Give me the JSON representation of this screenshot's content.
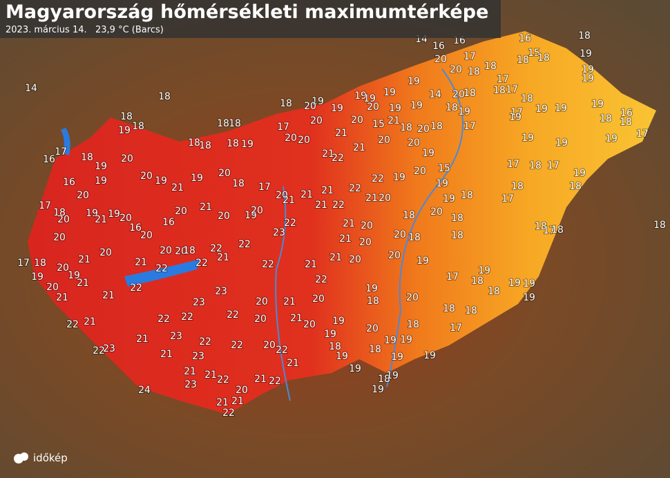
{
  "header": {
    "title": "Magyarország hőmérsékleti maximumtérképe",
    "subtitle": "2023. március 14.   23,9 °C (Barcs)"
  },
  "logo": "időkép",
  "map": {
    "labels": [
      14,
      18,
      18,
      14,
      16,
      16,
      16,
      15,
      18,
      19,
      17,
      20,
      18,
      18,
      20,
      18,
      19,
      19,
      17,
      19,
      14,
      20,
      18,
      18,
      17,
      19,
      19,
      19,
      18,
      19,
      20,
      19,
      20,
      19,
      19,
      18,
      19,
      17,
      18,
      19,
      19,
      19,
      16,
      18,
      18,
      17,
      18,
      19,
      18,
      18,
      18,
      17,
      20,
      21,
      20,
      15,
      21,
      18,
      20,
      18,
      17,
      19,
      19,
      19,
      19,
      17,
      16,
      18,
      20,
      19,
      18,
      18,
      18,
      19,
      20,
      20,
      21,
      22,
      21,
      20,
      20,
      19,
      17,
      18,
      17,
      19,
      16,
      20,
      19,
      20,
      19,
      21,
      19,
      20,
      18,
      17,
      20,
      21,
      21,
      22,
      22,
      19,
      20,
      15,
      19,
      18,
      18,
      18,
      17,
      17,
      18,
      20,
      19,
      21,
      19,
      20,
      16,
      20,
      20,
      16,
      21,
      20,
      19,
      20,
      21,
      21,
      22,
      21,
      20,
      18,
      20,
      19,
      18,
      18,
      17,
      18,
      18,
      20,
      22,
      23,
      21,
      20,
      18,
      20,
      18,
      20,
      20,
      18,
      22,
      22,
      21,
      20,
      17,
      18,
      20,
      21,
      20,
      21,
      22,
      22,
      21,
      22,
      21,
      21,
      20,
      20,
      19,
      19,
      19,
      20,
      21,
      22,
      22,
      17,
      19,
      18,
      19,
      19,
      18,
      21,
      21,
      23,
      23,
      20,
      21,
      20,
      19,
      18,
      20,
      18,
      18,
      19,
      22,
      21,
      22,
      22,
      22,
      20,
      21,
      20,
      19,
      20,
      18,
      17,
      23,
      21,
      22,
      22,
      20,
      22,
      19,
      18,
      19,
      18,
      19,
      19,
      22,
      23,
      21,
      23,
      21,
      19,
      19,
      19,
      21,
      21,
      22,
      22,
      21,
      18,
      19,
      24,
      23,
      20,
      19,
      21,
      21,
      22
    ]
  }
}
